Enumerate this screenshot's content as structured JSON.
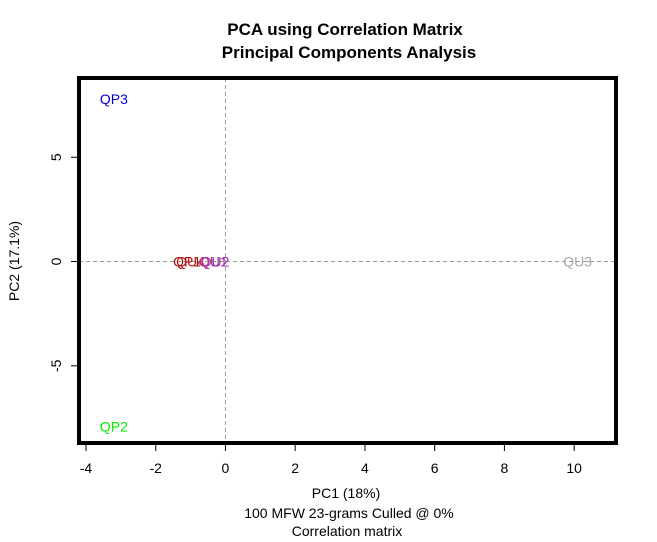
{
  "chart_data": {
    "type": "scatter",
    "title": "PCA using Correlation Matrix",
    "subtitle": "Principal Components Analysis",
    "xlabel": "PC1 (18%)",
    "ylabel": "PC2 (17.1%)",
    "caption_lines": [
      "100 MFW 23-grams Culled @ 0%",
      "Correlation matrix"
    ],
    "xlim": [
      -4.2,
      11.2
    ],
    "ylim": [
      -8.7,
      8.8
    ],
    "xticks": [
      -4,
      -2,
      0,
      2,
      4,
      6,
      8,
      10
    ],
    "yticks": [
      -5,
      0,
      5
    ],
    "grid": false,
    "reference_lines": {
      "x": 0,
      "y": 0
    },
    "points": [
      {
        "label": "QP3",
        "x": -3.2,
        "y": 7.8,
        "color": "#0000CC"
      },
      {
        "label": "QP2",
        "x": -3.2,
        "y": -7.9,
        "color": "#00EE00"
      },
      {
        "label": "QU3",
        "x": 10.1,
        "y": 0,
        "color": "#A8A8A8"
      },
      {
        "label": "QP1",
        "x": -1.1,
        "y": 0,
        "color": "#8B1A1A"
      },
      {
        "label": "QU4",
        "x": -1.0,
        "y": 0,
        "color": "#CC1111"
      },
      {
        "label": "QU1",
        "x": -0.35,
        "y": 0,
        "color": "#B03060"
      },
      {
        "label": "QU2",
        "x": -0.3,
        "y": 0,
        "color": "#9A32CD"
      }
    ]
  }
}
